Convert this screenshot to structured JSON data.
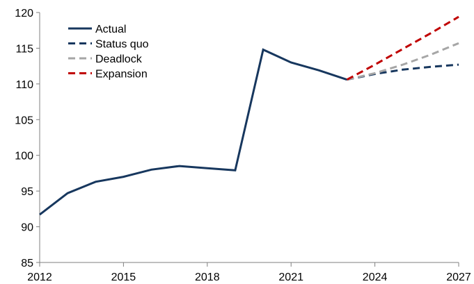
{
  "chart_data": {
    "type": "line",
    "title": "",
    "xlabel": "",
    "ylabel": "",
    "xlim": [
      2012,
      2027
    ],
    "ylim": [
      85,
      120
    ],
    "x_ticks": [
      "2012",
      "2015",
      "2018",
      "2021",
      "2024",
      "2027"
    ],
    "y_ticks": [
      "85",
      "90",
      "95",
      "100",
      "105",
      "110",
      "115",
      "120"
    ],
    "grid": false,
    "legend_position": "top-left",
    "series": [
      {
        "name": "Actual",
        "color": "#17375e",
        "style": "solid",
        "points": [
          [
            2012,
            91.7
          ],
          [
            2013,
            94.7
          ],
          [
            2014,
            96.3
          ],
          [
            2015,
            97.0
          ],
          [
            2016,
            98.0
          ],
          [
            2017,
            98.5
          ],
          [
            2018,
            98.2
          ],
          [
            2019,
            97.9
          ],
          [
            2020,
            114.8
          ],
          [
            2021,
            113.0
          ],
          [
            2022,
            111.9
          ],
          [
            2023,
            110.6
          ]
        ]
      },
      {
        "name": "Status quo",
        "color": "#17375e",
        "style": "dashed",
        "points": [
          [
            2023,
            110.6
          ],
          [
            2024,
            111.4
          ],
          [
            2025,
            112.0
          ],
          [
            2026,
            112.4
          ],
          [
            2027,
            112.7
          ]
        ]
      },
      {
        "name": "Deadlock",
        "color": "#a6a6a6",
        "style": "dashed",
        "points": [
          [
            2023,
            110.6
          ],
          [
            2024,
            111.5
          ],
          [
            2025,
            112.7
          ],
          [
            2026,
            114.1
          ],
          [
            2027,
            115.7
          ]
        ]
      },
      {
        "name": "Expansion",
        "color": "#c00000",
        "style": "dashed",
        "points": [
          [
            2023,
            110.6
          ],
          [
            2024,
            112.7
          ],
          [
            2025,
            114.9
          ],
          [
            2026,
            117.1
          ],
          [
            2027,
            119.4
          ]
        ]
      }
    ]
  }
}
